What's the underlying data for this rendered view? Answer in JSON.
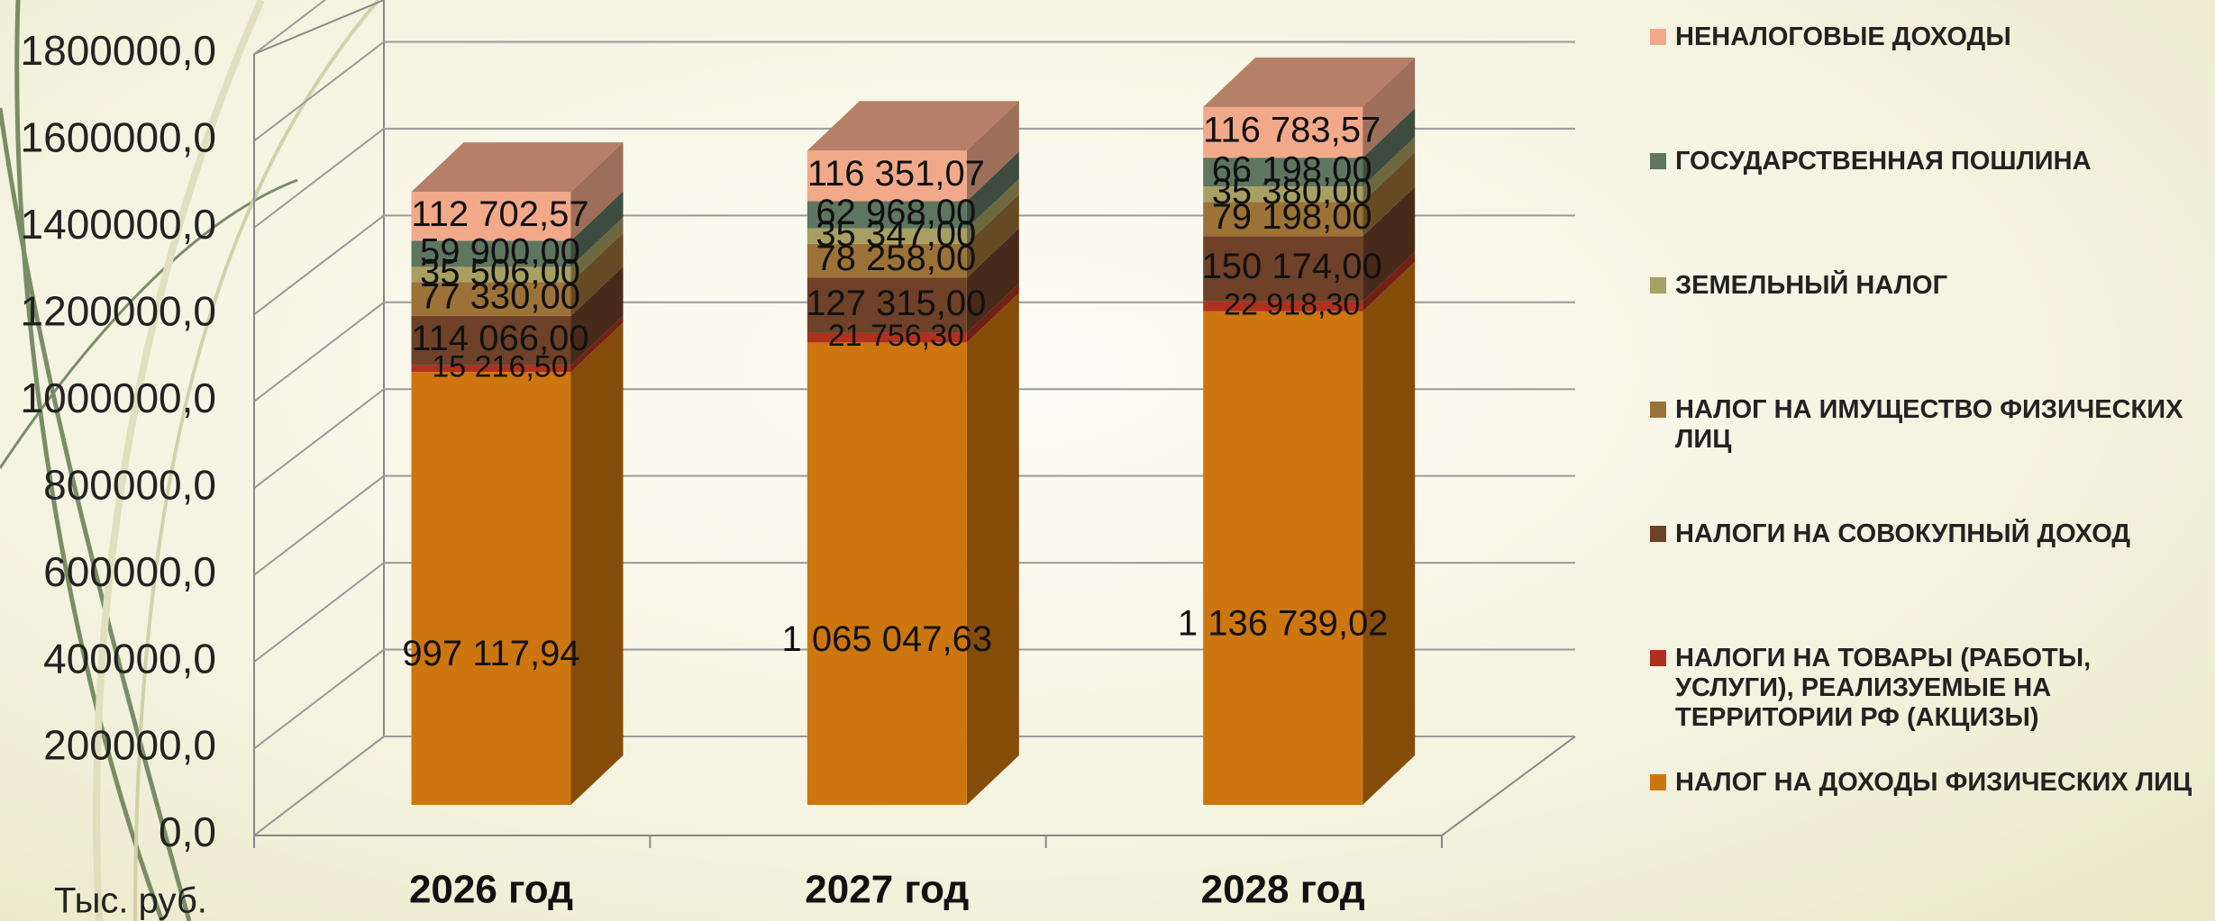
{
  "chart_data": {
    "type": "bar3d",
    "y_label": "Тыс. руб.",
    "categories": [
      "2026 год",
      "2027 год",
      "2028 год"
    ],
    "ylim": [
      0,
      1800000
    ],
    "yticks": [
      {
        "value": 0,
        "label": "0,0"
      },
      {
        "value": 200000,
        "label": "200000,0"
      },
      {
        "value": 400000,
        "label": "400000,0"
      },
      {
        "value": 600000,
        "label": "600000,0"
      },
      {
        "value": 800000,
        "label": "800000,0"
      },
      {
        "value": 1000000,
        "label": "1000000,0"
      },
      {
        "value": 1200000,
        "label": "1200000,0"
      },
      {
        "value": 1400000,
        "label": "1400000,0"
      },
      {
        "value": 1600000,
        "label": "1600000,0"
      },
      {
        "value": 1800000,
        "label": "1800000,0"
      }
    ],
    "grid": true,
    "series": [
      {
        "name": "НАЛОГ НА ДОХОДЫ ФИЗИЧЕСКИХ ЛИЦ",
        "color": "#cd760f",
        "values": [
          997117.94,
          1065047.63,
          1136739.02
        ],
        "value_labels": [
          "997 117,94",
          "1 065 047,63",
          "1 136 739,02"
        ]
      },
      {
        "name": "НАЛОГИ НА ТОВАРЫ (РАБОТЫ, УСЛУГИ), РЕАЛИЗУЕМЫЕ НА ТЕРРИТОРИИ РФ (АКЦИЗЫ)",
        "color": "#b0301e",
        "values": [
          15216.5,
          21756.3,
          22918.3
        ],
        "value_labels": [
          "15 216,50",
          "21 756,30",
          "22 918,30"
        ]
      },
      {
        "name": "НАЛОГИ НА СОВОКУПНЫЙ ДОХОД",
        "color": "#6e4128",
        "values": [
          114066,
          127315,
          150174
        ],
        "value_labels": [
          "114 066,00",
          "127 315,00",
          "150 174,00"
        ]
      },
      {
        "name": "НАЛОГ НА ИМУЩЕСТВО ФИЗИЧЕСКИХ ЛИЦ",
        "color": "#9c7236",
        "values": [
          77330,
          78258,
          79198
        ],
        "value_labels": [
          "77 330,00",
          "78 258,00",
          "79 198,00"
        ]
      },
      {
        "name": "ЗЕМЕЛЬНЫЙ НАЛОГ",
        "color": "#a8a062",
        "values": [
          35506,
          35347,
          35380
        ],
        "value_labels": [
          "35 506,00",
          "35 347,00",
          "35 380,00"
        ]
      },
      {
        "name": "ГОСУДАРСТВЕННАЯ ПОШЛИНА",
        "color": "#5e7560",
        "values": [
          59900,
          62968,
          66198
        ],
        "value_labels": [
          "59 900,00",
          "62 968,00",
          "66 198,00"
        ]
      },
      {
        "name": "НЕНАЛОГОВЫЕ ДОХОДЫ",
        "color": "#f2a98a",
        "values": [
          112702.57,
          116351.07,
          116783.57
        ],
        "value_labels": [
          "112 702,57",
          "116 351,07",
          "116 783,57"
        ]
      }
    ]
  }
}
